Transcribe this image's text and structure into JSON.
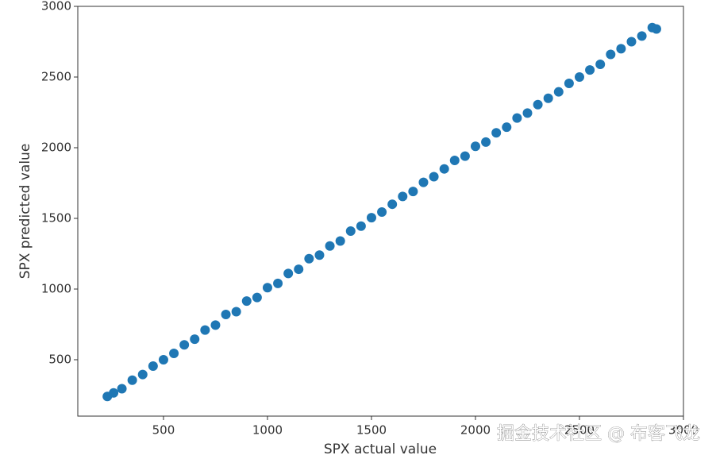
{
  "chart_data": {
    "type": "scatter",
    "x_label": "SPX actual value",
    "y_label": "SPX predicted value",
    "watermark": "掘金技术社区 @ 布客飞龙",
    "color": "#1f77b4",
    "xlim": [
      88,
      3000
    ],
    "ylim": [
      101,
      3000
    ],
    "xticks": [
      500,
      1000,
      1500,
      2000,
      2500,
      3000
    ],
    "yticks": [
      500,
      1000,
      1500,
      2000,
      2500,
      3000
    ],
    "x": [
      230,
      260,
      300,
      350,
      400,
      450,
      500,
      550,
      600,
      650,
      700,
      750,
      800,
      850,
      900,
      950,
      1000,
      1050,
      1100,
      1150,
      1200,
      1250,
      1300,
      1350,
      1400,
      1450,
      1500,
      1550,
      1600,
      1650,
      1700,
      1750,
      1800,
      1850,
      1900,
      1950,
      2000,
      2050,
      2100,
      2150,
      2200,
      2250,
      2300,
      2350,
      2400,
      2450,
      2500,
      2550,
      2600,
      2650,
      2700,
      2750,
      2800,
      2850,
      2870
    ],
    "values": [
      240,
      265,
      295,
      355,
      395,
      455,
      500,
      545,
      605,
      645,
      710,
      745,
      820,
      840,
      915,
      940,
      1010,
      1040,
      1110,
      1140,
      1215,
      1240,
      1305,
      1340,
      1410,
      1445,
      1505,
      1545,
      1600,
      1655,
      1690,
      1755,
      1795,
      1850,
      1910,
      1940,
      2010,
      2040,
      2105,
      2145,
      2210,
      2245,
      2305,
      2350,
      2395,
      2455,
      2500,
      2550,
      2590,
      2660,
      2700,
      2750,
      2790,
      2850,
      2840
    ]
  }
}
